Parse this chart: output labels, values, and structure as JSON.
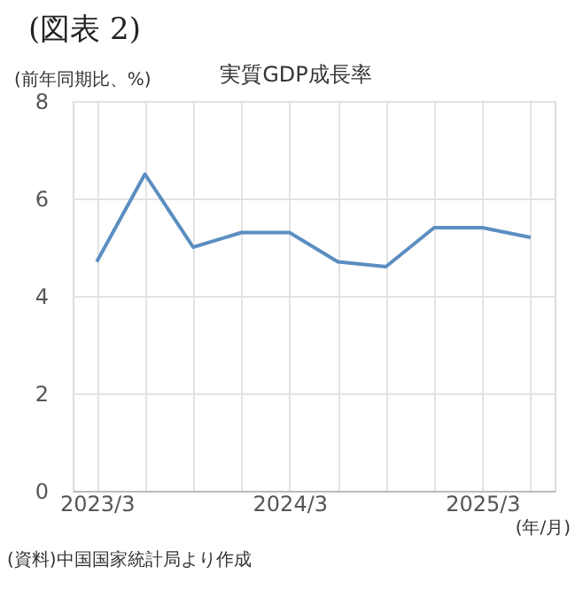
{
  "chart_data": {
    "type": "line",
    "title": "(図表 2)",
    "subtitle": "実質GDP成長率",
    "ylabel": "(前年同期比、%)",
    "xlabel": "(年/月)",
    "annotations": [
      "(資料)中国国家統計局より作成"
    ],
    "categories": [
      "2023/3",
      null,
      null,
      null,
      "2024/3",
      null,
      null,
      null,
      "2025/3",
      null
    ],
    "series": [
      {
        "color": "#5b8ec1",
        "values": [
          4.7,
          6.5,
          5.0,
          5.3,
          5.3,
          4.7,
          4.6,
          5.4,
          5.4,
          5.2
        ]
      }
    ],
    "ylim": [
      0,
      8
    ],
    "yticks": [
      0,
      2,
      4,
      6,
      8
    ],
    "grid": true,
    "legend": false,
    "marker": "none",
    "line_style": "solid"
  }
}
